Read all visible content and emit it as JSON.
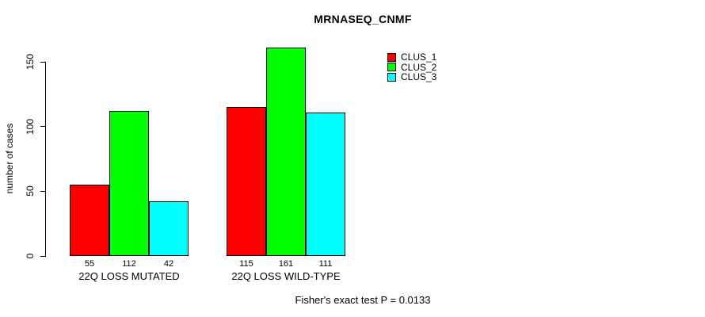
{
  "title": "MRNASEQ_CNMF",
  "subtitle": "Fisher's exact test P = 0.0133",
  "chart_data": {
    "type": "bar",
    "title": "MRNASEQ_CNMF",
    "xlabel": "",
    "ylabel": "number of cases",
    "categories": [
      "22Q LOSS MUTATED",
      "22Q LOSS WILD-TYPE"
    ],
    "series": [
      {
        "name": "CLUS_1",
        "color": "#ff0000",
        "values": [
          55,
          115
        ]
      },
      {
        "name": "CLUS_2",
        "color": "#00ff00",
        "values": [
          112,
          161
        ]
      },
      {
        "name": "CLUS_3",
        "color": "#00ffff",
        "values": [
          42,
          111
        ]
      }
    ],
    "ylim": [
      0,
      150
    ],
    "yticks": [
      0,
      50,
      100,
      150
    ],
    "grid": false,
    "bar_border_color": "#000000",
    "legend_position": "top-right",
    "annotation": "Fisher's exact test P = 0.0133"
  },
  "legend": {
    "items": [
      {
        "label": "CLUS_1",
        "color": "#ff0000"
      },
      {
        "label": "CLUS_2",
        "color": "#00ff00"
      },
      {
        "label": "CLUS_3",
        "color": "#00ffff"
      }
    ]
  }
}
